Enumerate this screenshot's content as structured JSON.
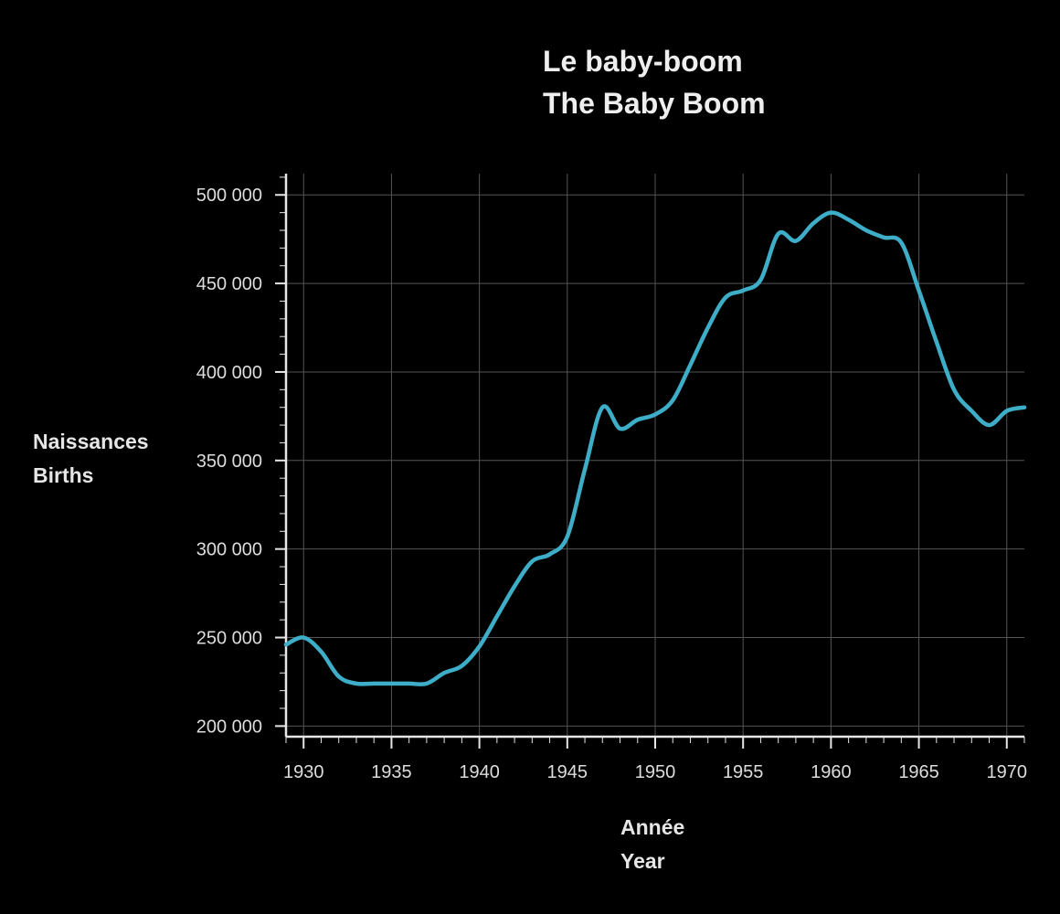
{
  "colors": {
    "background": "#000000",
    "line": "#3eaec8",
    "grid": "#555555",
    "axis": "#e6e6e6",
    "text": "#e6e6e6"
  },
  "chart_data": {
    "type": "line",
    "title": "Le baby-boom",
    "subtitle": "The Baby Boom",
    "xlabel": "Année",
    "xlabel_en": "Year",
    "ylabel": "Naissances",
    "ylabel_en": "Births",
    "xlim": [
      1929,
      1971
    ],
    "ylim": [
      194000,
      512000
    ],
    "x_ticks": [
      1930,
      1935,
      1940,
      1945,
      1950,
      1955,
      1960,
      1965,
      1970
    ],
    "y_ticks": [
      200000,
      250000,
      300000,
      350000,
      400000,
      450000,
      500000
    ],
    "y_tick_labels": [
      "200 000",
      "250 000",
      "300 000",
      "350 000",
      "400 000",
      "450 000",
      "500 000"
    ],
    "grid": true,
    "series": [
      {
        "x": [
          1929,
          1930,
          1931,
          1932,
          1933,
          1934,
          1935,
          1936,
          1937,
          1938,
          1939,
          1940,
          1941,
          1942,
          1943,
          1944,
          1945,
          1946,
          1947,
          1948,
          1949,
          1950,
          1951,
          1952,
          1953,
          1954,
          1955,
          1956,
          1957,
          1958,
          1959,
          1960,
          1961,
          1962,
          1963,
          1964,
          1965,
          1966,
          1967,
          1968,
          1969,
          1970,
          1971
        ],
        "values": [
          246000,
          250000,
          242000,
          228000,
          224000,
          224000,
          224000,
          224000,
          224000,
          230000,
          234000,
          245000,
          262000,
          279000,
          293000,
          297000,
          307000,
          345000,
          380000,
          368000,
          373000,
          376000,
          384000,
          404000,
          425000,
          442000,
          446000,
          452000,
          478000,
          474000,
          484000,
          490000,
          486000,
          480000,
          476000,
          473000,
          446000,
          417000,
          390000,
          378000,
          370000,
          378000,
          380000
        ]
      }
    ]
  }
}
